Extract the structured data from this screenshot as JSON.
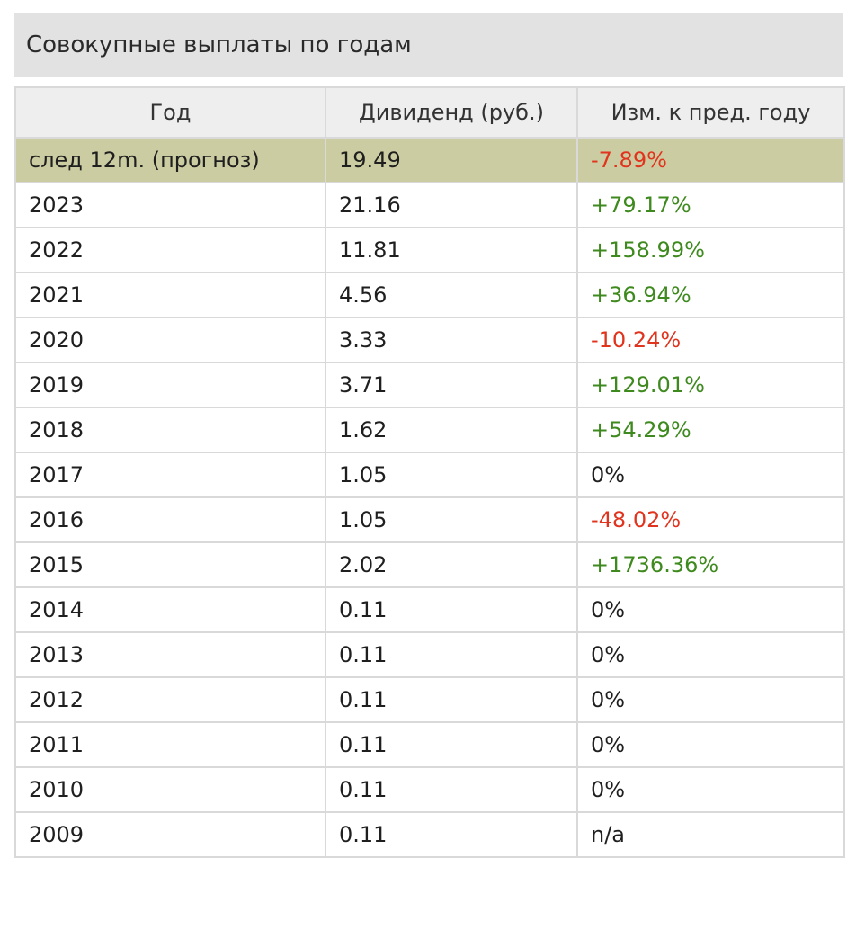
{
  "title": "Совокупные выплаты по годам",
  "columns": [
    "Год",
    "Дивиденд (руб.)",
    "Изм. к пред. году"
  ],
  "rows": [
    {
      "year": "след 12m. (прогноз)",
      "dividend": "19.49",
      "change": "-7.89%",
      "trend": "neg",
      "highlight": true
    },
    {
      "year": "2023",
      "dividend": "21.16",
      "change": "+79.17%",
      "trend": "pos"
    },
    {
      "year": "2022",
      "dividend": "11.81",
      "change": "+158.99%",
      "trend": "pos"
    },
    {
      "year": "2021",
      "dividend": "4.56",
      "change": "+36.94%",
      "trend": "pos"
    },
    {
      "year": "2020",
      "dividend": "3.33",
      "change": "-10.24%",
      "trend": "neg"
    },
    {
      "year": "2019",
      "dividend": "3.71",
      "change": "+129.01%",
      "trend": "pos"
    },
    {
      "year": "2018",
      "dividend": "1.62",
      "change": "+54.29%",
      "trend": "pos"
    },
    {
      "year": "2017",
      "dividend": "1.05",
      "change": "0%",
      "trend": "neu"
    },
    {
      "year": "2016",
      "dividend": "1.05",
      "change": "-48.02%",
      "trend": "neg"
    },
    {
      "year": "2015",
      "dividend": "2.02",
      "change": "+1736.36%",
      "trend": "pos"
    },
    {
      "year": "2014",
      "dividend": "0.11",
      "change": "0%",
      "trend": "neu"
    },
    {
      "year": "2013",
      "dividend": "0.11",
      "change": "0%",
      "trend": "neu"
    },
    {
      "year": "2012",
      "dividend": "0.11",
      "change": "0%",
      "trend": "neu"
    },
    {
      "year": "2011",
      "dividend": "0.11",
      "change": "0%",
      "trend": "neu"
    },
    {
      "year": "2010",
      "dividend": "0.11",
      "change": "0%",
      "trend": "neu"
    },
    {
      "year": "2009",
      "dividend": "0.11",
      "change": "n/a",
      "trend": "neu"
    }
  ],
  "colors": {
    "header_bar_bg": "#e2e2e2",
    "table_header_bg": "#eeeeee",
    "forecast_row_bg": "#cccca2",
    "positive": "#3f8a1f",
    "negative": "#e0341e",
    "border": "#d9d9d9"
  }
}
